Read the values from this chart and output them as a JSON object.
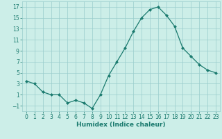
{
  "x": [
    0,
    1,
    2,
    3,
    4,
    5,
    6,
    7,
    8,
    9,
    10,
    11,
    12,
    13,
    14,
    15,
    16,
    17,
    18,
    19,
    20,
    21,
    22,
    23
  ],
  "y": [
    3.5,
    3.0,
    1.5,
    1.0,
    1.0,
    -0.5,
    0.0,
    -0.5,
    -1.5,
    1.0,
    4.5,
    7.0,
    9.5,
    12.5,
    15.0,
    16.5,
    17.0,
    15.5,
    13.5,
    9.5,
    8.0,
    6.5,
    5.5,
    5.0
  ],
  "xlabel": "Humidex (Indice chaleur)",
  "xlim": [
    -0.5,
    23.5
  ],
  "ylim": [
    -2,
    18
  ],
  "yticks": [
    -1,
    1,
    3,
    5,
    7,
    9,
    11,
    13,
    15,
    17
  ],
  "xticks": [
    0,
    1,
    2,
    3,
    4,
    5,
    6,
    7,
    8,
    9,
    10,
    11,
    12,
    13,
    14,
    15,
    16,
    17,
    18,
    19,
    20,
    21,
    22,
    23
  ],
  "line_color": "#1a7a6e",
  "bg_color": "#cceee8",
  "grid_color": "#99cccc",
  "font_color": "#1a7a6e",
  "label_fontsize": 6.5,
  "tick_fontsize": 5.5
}
